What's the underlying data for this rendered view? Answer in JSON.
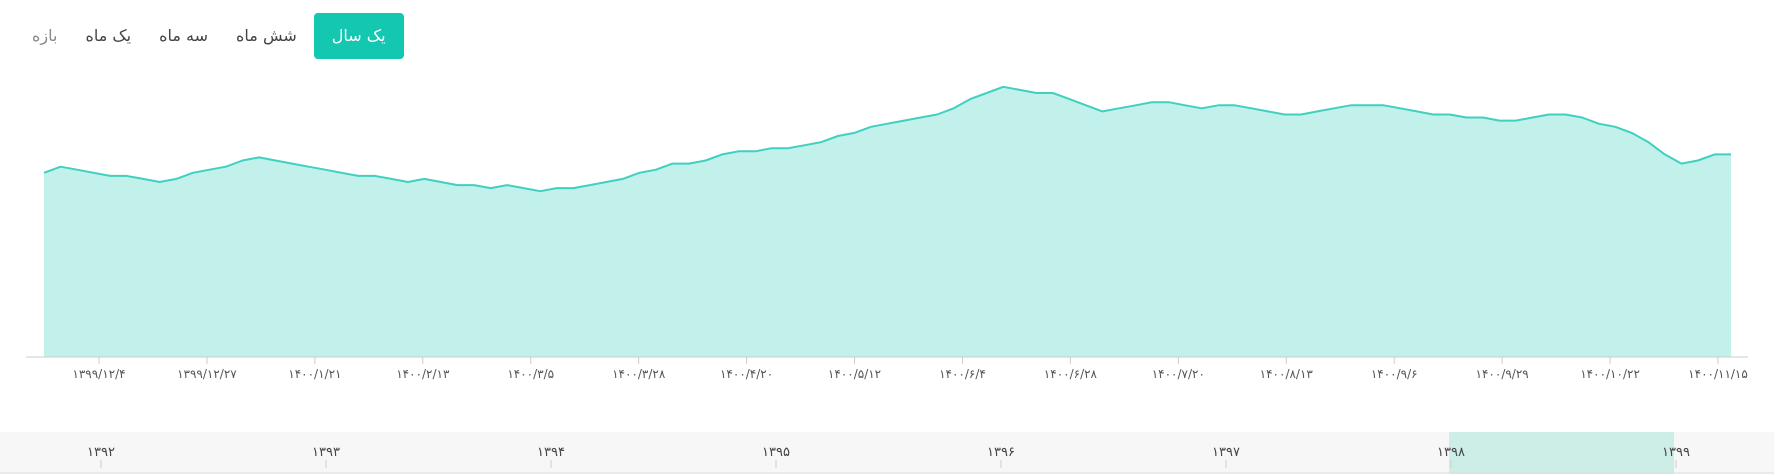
{
  "tabs": [
    {
      "label": "یک سال",
      "active": true
    },
    {
      "label": "شش ماه",
      "active": false
    },
    {
      "label": "سه ماه",
      "active": false
    },
    {
      "label": "یک ماه",
      "active": false
    },
    {
      "label": "بازه",
      "active": false
    }
  ],
  "colors": {
    "accent": "#14c7b0",
    "line": "#3fd0bf",
    "area": "#c2f1ec",
    "navigator_range": "#cdeee7"
  },
  "chart_data": {
    "type": "area",
    "title": "",
    "xlabel": "",
    "ylabel": "",
    "x_ticks": [
      "۱۳۹۹/۱۲/۴",
      "۱۳۹۹/۱۲/۲۷",
      "۱۴۰۰/۱/۲۱",
      "۱۴۰۰/۲/۱۳",
      "۱۴۰۰/۳/۵",
      "۱۴۰۰/۳/۲۸",
      "۱۴۰۰/۴/۲۰",
      "۱۴۰۰/۵/۱۲",
      "۱۴۰۰/۶/۴",
      "۱۴۰۰/۶/۲۸",
      "۱۴۰۰/۷/۲۰",
      "۱۴۰۰/۸/۱۳",
      "۱۴۰۰/۹/۶",
      "۱۴۰۰/۹/۲۹",
      "۱۴۰۰/۱۰/۲۲",
      "۱۴۰۰/۱۱/۱۵"
    ],
    "y_axis_visible": false,
    "ylim": [
      0,
      100
    ],
    "series": [
      {
        "values": [
          60,
          62,
          61,
          60,
          59,
          59,
          58,
          57,
          58,
          60,
          61,
          62,
          64,
          65,
          64,
          63,
          62,
          61,
          60,
          59,
          59,
          58,
          57,
          58,
          57,
          56,
          56,
          55,
          56,
          55,
          54,
          55,
          55,
          56,
          57,
          58,
          60,
          61,
          63,
          63,
          64,
          66,
          67,
          67,
          68,
          68,
          69,
          70,
          72,
          73,
          75,
          76,
          77,
          78,
          79,
          81,
          84,
          86,
          88,
          87,
          86,
          86,
          84,
          82,
          80,
          81,
          82,
          83,
          83,
          82,
          81,
          82,
          82,
          81,
          80,
          79,
          79,
          80,
          81,
          82,
          82,
          82,
          81,
          80,
          79,
          79,
          78,
          78,
          77,
          77,
          78,
          79,
          79,
          78,
          76,
          75,
          73,
          70,
          66,
          63,
          64,
          66,
          66
        ]
      }
    ]
  },
  "navigator": {
    "year_labels": [
      "۱۳۹۲",
      "۱۳۹۳",
      "۱۳۹۴",
      "۱۳۹۵",
      "۱۳۹۶",
      "۱۳۹۷",
      "۱۳۹۸",
      "۱۳۹۹"
    ]
  }
}
